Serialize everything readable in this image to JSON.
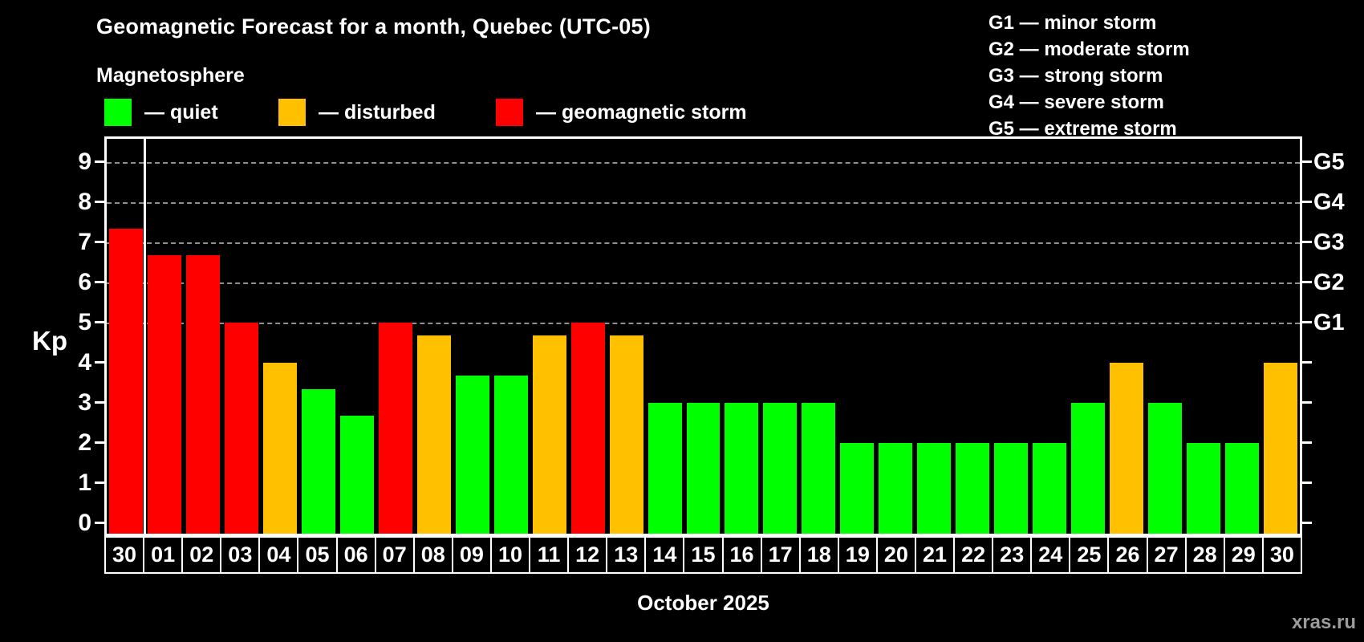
{
  "title": "Geomagnetic Forecast for a month, Quebec (UTC-05)",
  "subtitle": "Magnetosphere",
  "legend": {
    "items": [
      {
        "key": "quiet",
        "label": "— quiet",
        "x": 0
      },
      {
        "key": "disturbed",
        "label": "— disturbed",
        "x": 217
      },
      {
        "key": "storm",
        "label": "— geomagnetic storm",
        "x": 488
      }
    ]
  },
  "g_legend": {
    "lines": [
      "G1 — minor storm",
      "G2 — moderate storm",
      "G3 — strong storm",
      "G4 — severe storm",
      "G5 — extreme storm"
    ]
  },
  "axis": {
    "y_label": "Kp",
    "y_tick_labels": [
      "0",
      "1",
      "2",
      "3",
      "4",
      "5",
      "6",
      "7",
      "8",
      "9"
    ],
    "right_labels": [
      {
        "text": "G1",
        "kp": 5
      },
      {
        "text": "G2",
        "kp": 6
      },
      {
        "text": "G3",
        "kp": 7
      },
      {
        "text": "G4",
        "kp": 8
      },
      {
        "text": "G5",
        "kp": 9
      }
    ]
  },
  "footer": {
    "month": "October 2025",
    "watermark": "xras.ru"
  },
  "colors": {
    "quiet": "#00ff00",
    "disturbed": "#ffc000",
    "storm": "#ff0000",
    "grid": "#909090",
    "background": "#000000",
    "text": "#ffffff"
  },
  "chart_data": {
    "type": "bar",
    "title": "Geomagnetic Forecast for a month, Quebec (UTC-05)",
    "xlabel": "October 2025",
    "ylabel": "Kp",
    "ylim": [
      -0.33,
      9.63
    ],
    "grid_on": [
      5,
      6,
      7,
      8,
      9
    ],
    "month_divider_after_index": 0,
    "categories": [
      "30",
      "01",
      "02",
      "03",
      "04",
      "05",
      "06",
      "07",
      "08",
      "09",
      "10",
      "11",
      "12",
      "13",
      "14",
      "15",
      "16",
      "17",
      "18",
      "19",
      "20",
      "21",
      "22",
      "23",
      "24",
      "25",
      "26",
      "27",
      "28",
      "29",
      "30"
    ],
    "values": [
      7.33,
      6.67,
      6.67,
      5,
      4,
      3.33,
      2.67,
      5,
      4.67,
      3.67,
      3.67,
      4.67,
      5,
      4.67,
      3,
      3,
      3,
      3,
      3,
      2,
      2,
      2,
      2,
      2,
      2,
      3,
      4,
      3,
      2,
      2,
      4
    ],
    "status": [
      "storm",
      "storm",
      "storm",
      "storm",
      "disturbed",
      "quiet",
      "quiet",
      "storm",
      "disturbed",
      "quiet",
      "quiet",
      "disturbed",
      "storm",
      "disturbed",
      "quiet",
      "quiet",
      "quiet",
      "quiet",
      "quiet",
      "quiet",
      "quiet",
      "quiet",
      "quiet",
      "quiet",
      "quiet",
      "quiet",
      "disturbed",
      "quiet",
      "quiet",
      "quiet",
      "disturbed"
    ]
  }
}
